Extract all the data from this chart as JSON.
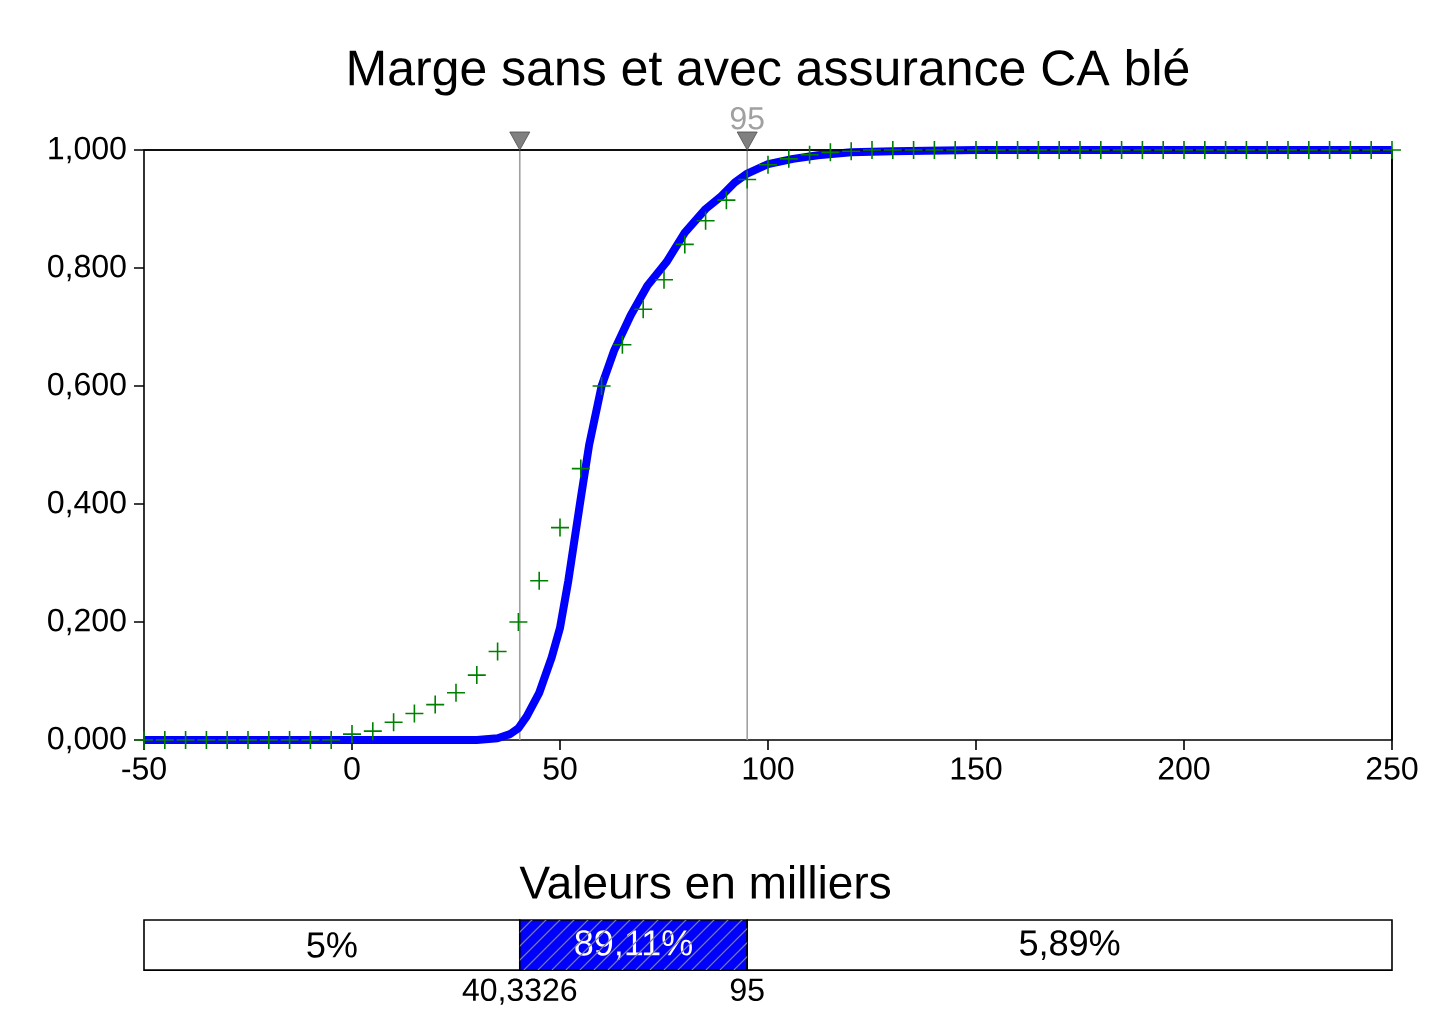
{
  "chart_data": {
    "type": "line",
    "title": "Marge sans et avec assurance CA blé",
    "xlabel": "Valeurs en milliers",
    "xlim": [
      -50,
      250
    ],
    "xticks": [
      -50,
      0,
      50,
      100,
      150,
      200,
      250
    ],
    "ylim": [
      0,
      1
    ],
    "yticks": [
      {
        "value": 0,
        "label": "0,000"
      },
      {
        "value": 0.2,
        "label": "0,200"
      },
      {
        "value": 0.4,
        "label": "0,400"
      },
      {
        "value": 0.6,
        "label": "0,600"
      },
      {
        "value": 0.8,
        "label": "0,800"
      },
      {
        "value": 1,
        "label": "1,000"
      }
    ],
    "grid": false,
    "series": [
      {
        "color": "#0000ff",
        "marker": "none",
        "x": [
          -50,
          30,
          35,
          38,
          40,
          42,
          45,
          48,
          50,
          52,
          55,
          57,
          60,
          63,
          67,
          71,
          75.6,
          80,
          85,
          88.5,
          92,
          95,
          100,
          106,
          112,
          120,
          130,
          150,
          250
        ],
        "values": [
          0,
          0,
          0.003,
          0.01,
          0.02,
          0.04,
          0.08,
          0.14,
          0.19,
          0.27,
          0.41,
          0.5,
          0.6,
          0.66,
          0.72,
          0.77,
          0.81,
          0.86,
          0.9,
          0.92,
          0.945,
          0.96,
          0.976,
          0.985,
          0.991,
          0.996,
          0.998,
          1,
          1
        ]
      },
      {
        "type": "scatter",
        "color": "#008000",
        "marker": "cross",
        "x": [
          -50,
          -45,
          -40,
          -35,
          -30,
          -25,
          -20,
          -15,
          -10,
          -5,
          0,
          5,
          10,
          15,
          20,
          25,
          30,
          35,
          40,
          45,
          50,
          55,
          60,
          65,
          70,
          75,
          80,
          85,
          90,
          95,
          100,
          105,
          110,
          115,
          120,
          125,
          130,
          135,
          140,
          145,
          150,
          155,
          160,
          165,
          170,
          175,
          180,
          185,
          190,
          195,
          200,
          205,
          210,
          215,
          220,
          225,
          230,
          235,
          240,
          245,
          250
        ],
        "values": [
          0,
          0,
          0,
          0,
          0,
          0,
          0,
          0,
          0,
          0,
          0.01,
          0.015,
          0.03,
          0.045,
          0.06,
          0.08,
          0.11,
          0.15,
          0.2,
          0.27,
          0.36,
          0.46,
          0.6,
          0.67,
          0.73,
          0.78,
          0.84,
          0.88,
          0.915,
          0.95,
          0.975,
          0.985,
          0.992,
          0.996,
          0.998,
          1,
          1,
          1,
          1,
          1,
          1,
          1,
          1,
          1,
          1,
          1,
          1,
          1,
          1,
          1,
          1,
          1,
          1,
          1,
          1,
          1,
          1,
          1,
          1,
          1,
          1
        ]
      }
    ],
    "ref_lines": [
      {
        "axis": "x",
        "value": 40.3326,
        "color": "#a0a0a0"
      },
      {
        "axis": "x",
        "value": 95,
        "label": "95",
        "color": "#a0a0a0"
      }
    ],
    "annotations": [
      "5%",
      "89,11%",
      "5,89%",
      "40,3326",
      "95"
    ]
  }
}
